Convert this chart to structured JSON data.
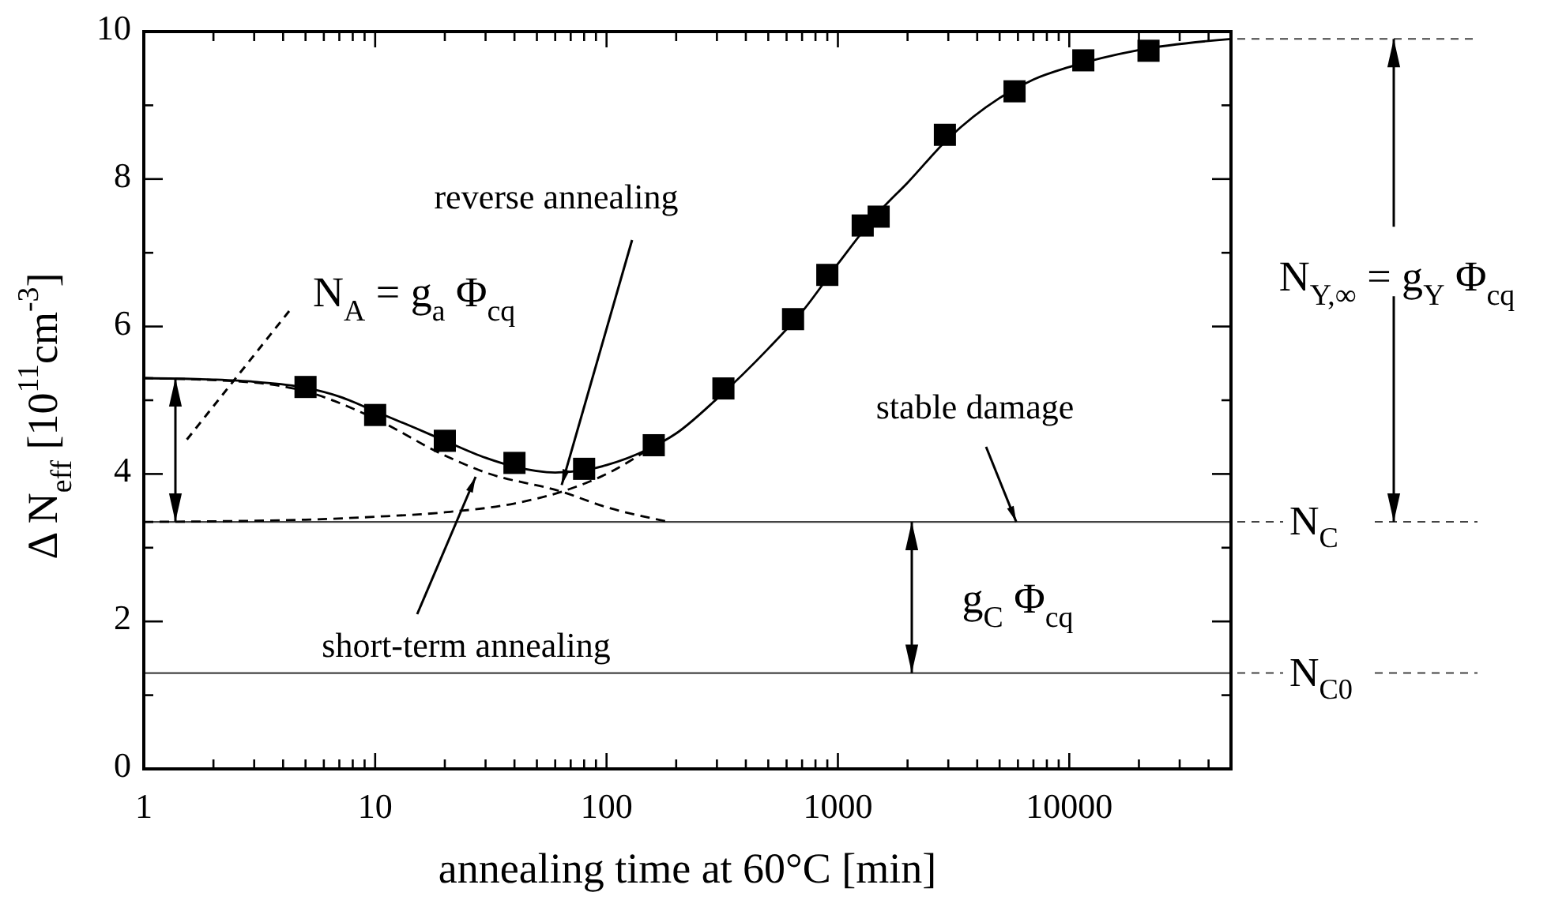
{
  "chart_data": {
    "type": "line",
    "xlabel": "annealing time at 60°C [min]",
    "ylabel": "Δ N$_{eff}$ [10$^{11}$cm$^{-3}$]",
    "log": "x",
    "xlim": [
      1,
      50000
    ],
    "ylim": [
      0,
      10
    ],
    "xticks": [
      1,
      {
        "value": 2,
        "label": null
      },
      {
        "value": 3,
        "label": null
      },
      {
        "value": 4,
        "label": null
      },
      {
        "value": 5,
        "label": null
      },
      {
        "value": 6,
        "label": null
      },
      {
        "value": 7,
        "label": null
      },
      {
        "value": 8,
        "label": null
      },
      {
        "value": 9,
        "label": null
      },
      10,
      {
        "value": 20,
        "label": null
      },
      {
        "value": 30,
        "label": null
      },
      {
        "value": 40,
        "label": null
      },
      {
        "value": 50,
        "label": null
      },
      {
        "value": 60,
        "label": null
      },
      {
        "value": 70,
        "label": null
      },
      {
        "value": 80,
        "label": null
      },
      {
        "value": 90,
        "label": null
      },
      100,
      {
        "value": 200,
        "label": null
      },
      {
        "value": 300,
        "label": null
      },
      {
        "value": 400,
        "label": null
      },
      {
        "value": 500,
        "label": null
      },
      {
        "value": 600,
        "label": null
      },
      {
        "value": 700,
        "label": null
      },
      {
        "value": 800,
        "label": null
      },
      {
        "value": 900,
        "label": null
      },
      1000,
      {
        "value": 2000,
        "label": null
      },
      {
        "value": 3000,
        "label": null
      },
      {
        "value": 4000,
        "label": null
      },
      {
        "value": 5000,
        "label": null
      },
      {
        "value": 6000,
        "label": null
      },
      {
        "value": 7000,
        "label": null
      },
      {
        "value": 8000,
        "label": null
      },
      {
        "value": 9000,
        "label": null
      },
      10000,
      {
        "value": 20000,
        "label": null
      },
      {
        "value": 30000,
        "label": null
      },
      {
        "value": 40000,
        "label": null
      }
    ],
    "yticks": [
      0,
      {
        "value": 1,
        "label": null
      },
      2,
      {
        "value": 3,
        "label": null
      },
      4,
      {
        "value": 5,
        "label": null
      },
      6,
      {
        "value": 7,
        "label": null
      },
      8,
      {
        "value": 9,
        "label": null
      },
      10
    ],
    "series": [
      {
        "type": "scatter",
        "marker": "square",
        "color": "#000000",
        "x": [
          5,
          10,
          20,
          40,
          80,
          160,
          320,
          640,
          900,
          1280,
          1500,
          2900,
          5800,
          11500,
          22000
        ],
        "values": [
          5.18,
          4.8,
          4.45,
          4.15,
          4.07,
          4.39,
          5.16,
          6.1,
          6.7,
          7.37,
          7.49,
          8.6,
          9.19,
          9.61,
          9.74
        ]
      },
      {
        "marker": "none",
        "line_style": "solid",
        "color": "#000000",
        "x": [
          1,
          2,
          3,
          5,
          7,
          10,
          15,
          20,
          30,
          40,
          60,
          80,
          100,
          150,
          200,
          300,
          500,
          700,
          1000,
          1500,
          2000,
          3000,
          5000,
          7000,
          10000,
          20000,
          50000
        ],
        "values": [
          5.3,
          5.28,
          5.25,
          5.17,
          5.05,
          4.85,
          4.62,
          4.45,
          4.22,
          4.1,
          4.02,
          4.05,
          4.12,
          4.33,
          4.55,
          5.02,
          5.7,
          6.2,
          6.85,
          7.55,
          7.95,
          8.55,
          9.1,
          9.35,
          9.52,
          9.75,
          9.9
        ]
      },
      {
        "marker": "none",
        "line_style": "dashed",
        "color": "#000000",
        "x": [
          1,
          3,
          5,
          10,
          20,
          30,
          64,
          100,
          180
        ],
        "values": [
          5.3,
          5.24,
          5.12,
          4.75,
          4.25,
          4.02,
          3.76,
          3.55,
          3.36
        ]
      },
      {
        "marker": "none",
        "line_style": "dashed",
        "color": "#000000",
        "x": [
          1,
          5,
          10,
          20,
          40,
          64,
          100,
          160
        ],
        "values": [
          3.35,
          3.38,
          3.42,
          3.48,
          3.6,
          3.76,
          4.0,
          4.38
        ]
      }
    ],
    "ref_lines": [
      {
        "axis": "y",
        "value": 3.35,
        "label": "N$_{C}$",
        "line_style": "solid"
      },
      {
        "axis": "y",
        "value": 1.3,
        "label": "N$_{C0}$",
        "line_style": "solid"
      }
    ],
    "annotations": [
      {
        "text": "reverse annealing",
        "x": 64,
        "y": 3.85
      },
      "short-term annealing",
      {
        "text": "stable damage",
        "x": 5900,
        "y": 3.35
      },
      "N$_{A}$ = g$_{a}$ Φ$_{cq}$",
      "N$_{Y,∞}$ = g$_{Y}$ Φ$_{cq}$",
      "g$_{C}$ Φ$_{cq}$"
    ]
  }
}
